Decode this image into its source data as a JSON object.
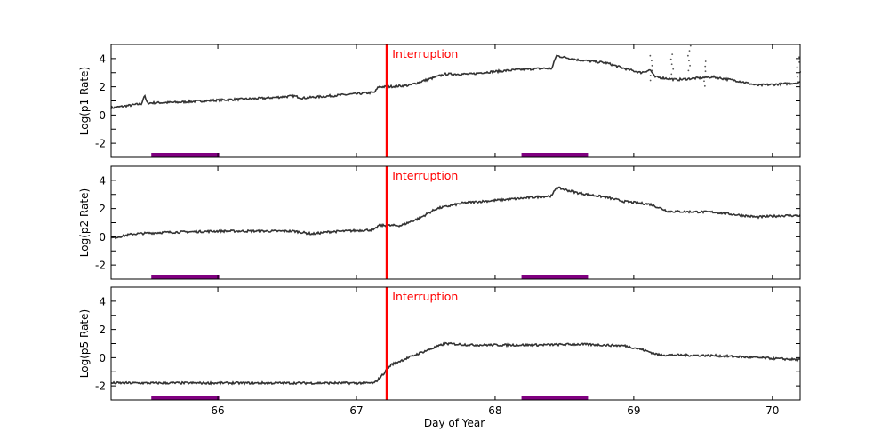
{
  "chart_data": {
    "type": "line",
    "xlabel": "Day of Year",
    "xlim": [
      65.23,
      70.2
    ],
    "x_ticks": [
      "66",
      "67",
      "68",
      "69",
      "70"
    ],
    "y_ticks": [
      "-2",
      "0",
      "2",
      "4"
    ],
    "ylim": [
      -3,
      5
    ],
    "interruption": {
      "x": 67.22,
      "label": "Interruption",
      "color": "#ff0000"
    },
    "shaded_periods": {
      "color": "#800080",
      "ranges": [
        [
          65.52,
          66.01
        ],
        [
          68.19,
          68.67
        ]
      ]
    },
    "line_color": "#333333",
    "panels": [
      {
        "ylabel": "Log(p1 Rate)",
        "x": [
          65.23,
          65.45,
          65.47,
          65.49,
          65.71,
          66.0,
          66.35,
          66.55,
          66.61,
          67.0,
          67.13,
          67.16,
          67.22,
          67.38,
          67.51,
          67.64,
          67.83,
          67.9,
          68.15,
          68.35,
          68.41,
          68.44,
          68.6,
          68.8,
          68.93,
          69.05,
          69.12,
          69.15,
          69.31,
          69.57,
          69.76,
          69.89,
          70.08,
          70.2
        ],
        "y": [
          0.5,
          0.8,
          1.4,
          0.85,
          0.9,
          1.05,
          1.2,
          1.35,
          1.2,
          1.5,
          1.6,
          2.0,
          2.0,
          2.1,
          2.5,
          2.9,
          2.9,
          3.0,
          3.2,
          3.3,
          3.3,
          4.2,
          3.9,
          3.7,
          3.3,
          3.0,
          3.2,
          2.7,
          2.5,
          2.7,
          2.4,
          2.1,
          2.2,
          2.3
        ],
        "spikes": [
          [
            69.13,
            4.2
          ],
          [
            69.28,
            4.3
          ],
          [
            69.4,
            4.9
          ],
          [
            69.52,
            3.8
          ],
          [
            70.19,
            4.1
          ]
        ]
      },
      {
        "ylabel": "Log(p2 Rate)",
        "x": [
          65.23,
          65.39,
          65.58,
          66.0,
          66.55,
          66.68,
          66.8,
          67.13,
          67.16,
          67.22,
          67.32,
          67.45,
          67.58,
          67.77,
          68.03,
          68.28,
          68.41,
          68.44,
          68.6,
          68.8,
          68.93,
          69.12,
          69.25,
          69.57,
          69.89,
          70.08,
          70.2
        ],
        "y": [
          -0.1,
          0.2,
          0.3,
          0.4,
          0.4,
          0.2,
          0.35,
          0.5,
          0.8,
          0.8,
          0.8,
          1.3,
          2.0,
          2.4,
          2.6,
          2.8,
          2.9,
          3.5,
          3.1,
          2.8,
          2.5,
          2.3,
          1.8,
          1.75,
          1.4,
          1.5,
          1.5
        ]
      },
      {
        "ylabel": "Log(p5 Rate)",
        "x": [
          65.23,
          67.13,
          67.19,
          67.25,
          67.45,
          67.64,
          67.83,
          68.28,
          68.6,
          68.93,
          69.05,
          69.18,
          69.57,
          69.89,
          70.2
        ],
        "y": [
          -1.8,
          -1.8,
          -1.2,
          -0.5,
          0.3,
          1.0,
          0.9,
          0.9,
          0.95,
          0.85,
          0.6,
          0.2,
          0.15,
          0.0,
          -0.15
        ]
      }
    ]
  }
}
